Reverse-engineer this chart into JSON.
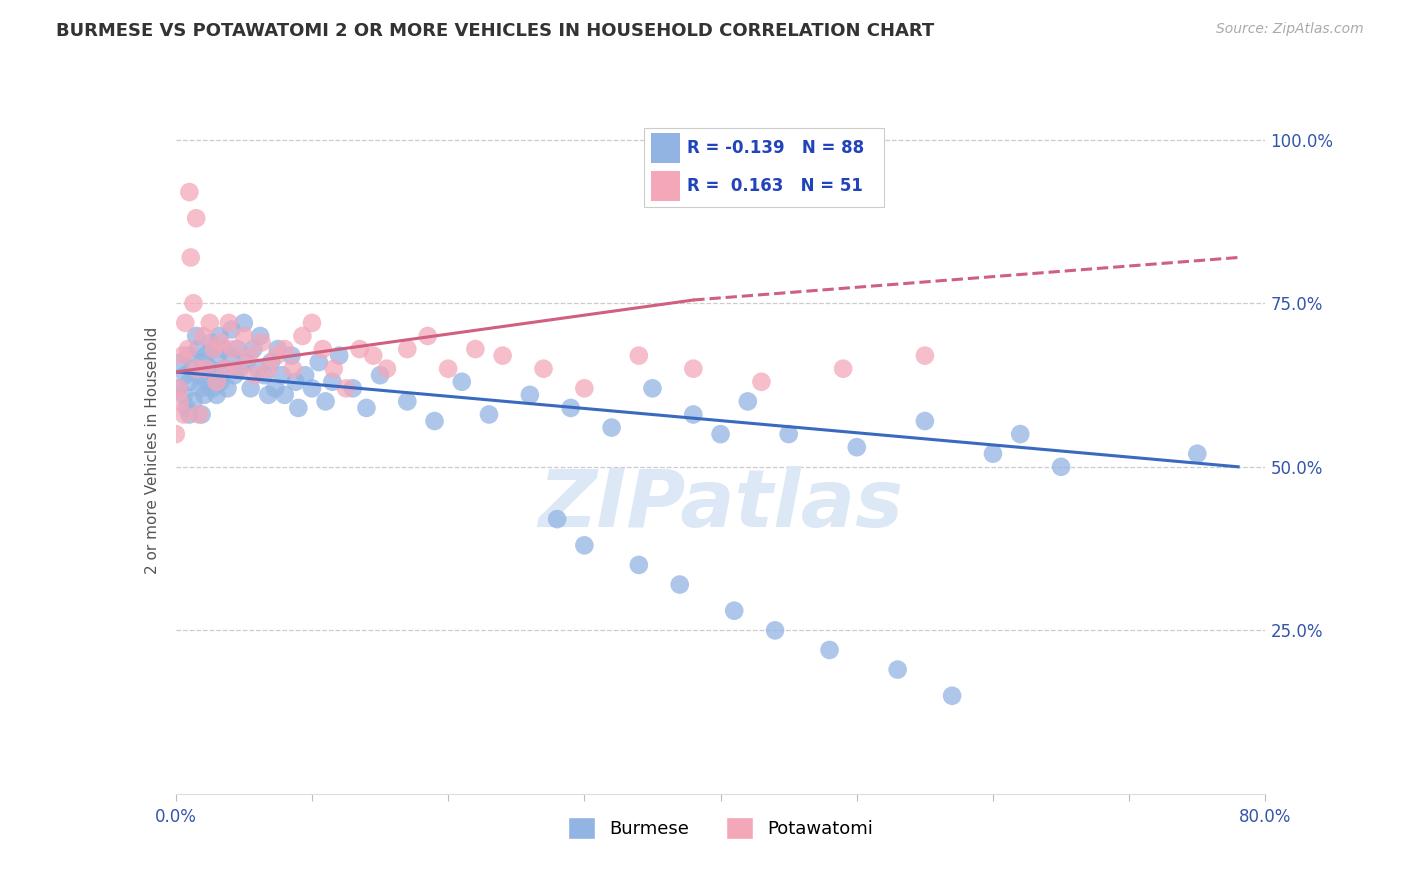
{
  "title": "BURMESE VS POTAWATOMI 2 OR MORE VEHICLES IN HOUSEHOLD CORRELATION CHART",
  "source": "Source: ZipAtlas.com",
  "ylabel": "2 or more Vehicles in Household",
  "legend_burmese": "Burmese",
  "legend_potawatomi": "Potawatomi",
  "r_burmese": "-0.139",
  "n_burmese": "88",
  "r_potawatomi": "0.163",
  "n_potawatomi": "51",
  "color_burmese": "#92b4e3",
  "color_potawatomi": "#f4a7b9",
  "line_color_burmese": "#3a6abf",
  "line_color_potawatomi": "#d06080",
  "watermark": "ZIPatlas",
  "watermark_color": "#dce8f5",
  "xlim": [
    0.0,
    0.8
  ],
  "ylim": [
    0.0,
    1.05
  ],
  "title_fontsize": 13,
  "source_fontsize": 10,
  "burmese_x": [
    0.002,
    0.004,
    0.006,
    0.007,
    0.008,
    0.009,
    0.01,
    0.01,
    0.012,
    0.013,
    0.015,
    0.016,
    0.017,
    0.018,
    0.019,
    0.02,
    0.021,
    0.022,
    0.023,
    0.025,
    0.026,
    0.027,
    0.028,
    0.029,
    0.03,
    0.031,
    0.032,
    0.033,
    0.035,
    0.036,
    0.038,
    0.04,
    0.041,
    0.043,
    0.045,
    0.047,
    0.05,
    0.052,
    0.055,
    0.057,
    0.06,
    0.062,
    0.065,
    0.068,
    0.07,
    0.073,
    0.075,
    0.078,
    0.08,
    0.085,
    0.088,
    0.09,
    0.095,
    0.1,
    0.105,
    0.11,
    0.115,
    0.12,
    0.13,
    0.14,
    0.15,
    0.17,
    0.19,
    0.21,
    0.23,
    0.26,
    0.29,
    0.32,
    0.35,
    0.38,
    0.4,
    0.42,
    0.45,
    0.5,
    0.55,
    0.6,
    0.62,
    0.65,
    0.28,
    0.3,
    0.34,
    0.37,
    0.41,
    0.44,
    0.48,
    0.53,
    0.57,
    0.75
  ],
  "burmese_y": [
    0.62,
    0.66,
    0.61,
    0.64,
    0.59,
    0.67,
    0.63,
    0.58,
    0.65,
    0.6,
    0.7,
    0.68,
    0.64,
    0.62,
    0.58,
    0.66,
    0.61,
    0.67,
    0.63,
    0.65,
    0.69,
    0.62,
    0.68,
    0.64,
    0.61,
    0.66,
    0.7,
    0.63,
    0.68,
    0.65,
    0.62,
    0.67,
    0.71,
    0.64,
    0.68,
    0.65,
    0.72,
    0.66,
    0.62,
    0.68,
    0.65,
    0.7,
    0.64,
    0.61,
    0.66,
    0.62,
    0.68,
    0.64,
    0.61,
    0.67,
    0.63,
    0.59,
    0.64,
    0.62,
    0.66,
    0.6,
    0.63,
    0.67,
    0.62,
    0.59,
    0.64,
    0.6,
    0.57,
    0.63,
    0.58,
    0.61,
    0.59,
    0.56,
    0.62,
    0.58,
    0.55,
    0.6,
    0.55,
    0.53,
    0.57,
    0.52,
    0.55,
    0.5,
    0.42,
    0.38,
    0.35,
    0.32,
    0.28,
    0.25,
    0.22,
    0.19,
    0.15,
    0.52
  ],
  "potawatomi_x": [
    0.002,
    0.005,
    0.007,
    0.009,
    0.011,
    0.013,
    0.015,
    0.017,
    0.02,
    0.022,
    0.025,
    0.028,
    0.03,
    0.033,
    0.036,
    0.039,
    0.042,
    0.046,
    0.05,
    0.054,
    0.058,
    0.063,
    0.068,
    0.074,
    0.08,
    0.086,
    0.093,
    0.1,
    0.108,
    0.116,
    0.125,
    0.135,
    0.145,
    0.155,
    0.17,
    0.185,
    0.2,
    0.22,
    0.24,
    0.27,
    0.3,
    0.34,
    0.38,
    0.43,
    0.49,
    0.55,
    0.0,
    0.003,
    0.006,
    0.01,
    0.015
  ],
  "potawatomi_y": [
    0.62,
    0.67,
    0.72,
    0.68,
    0.82,
    0.75,
    0.65,
    0.58,
    0.7,
    0.65,
    0.72,
    0.68,
    0.63,
    0.69,
    0.65,
    0.72,
    0.68,
    0.65,
    0.7,
    0.67,
    0.64,
    0.69,
    0.65,
    0.67,
    0.68,
    0.65,
    0.7,
    0.72,
    0.68,
    0.65,
    0.62,
    0.68,
    0.67,
    0.65,
    0.68,
    0.7,
    0.65,
    0.68,
    0.67,
    0.65,
    0.62,
    0.67,
    0.65,
    0.63,
    0.65,
    0.67,
    0.55,
    0.6,
    0.58,
    0.92,
    0.88
  ]
}
